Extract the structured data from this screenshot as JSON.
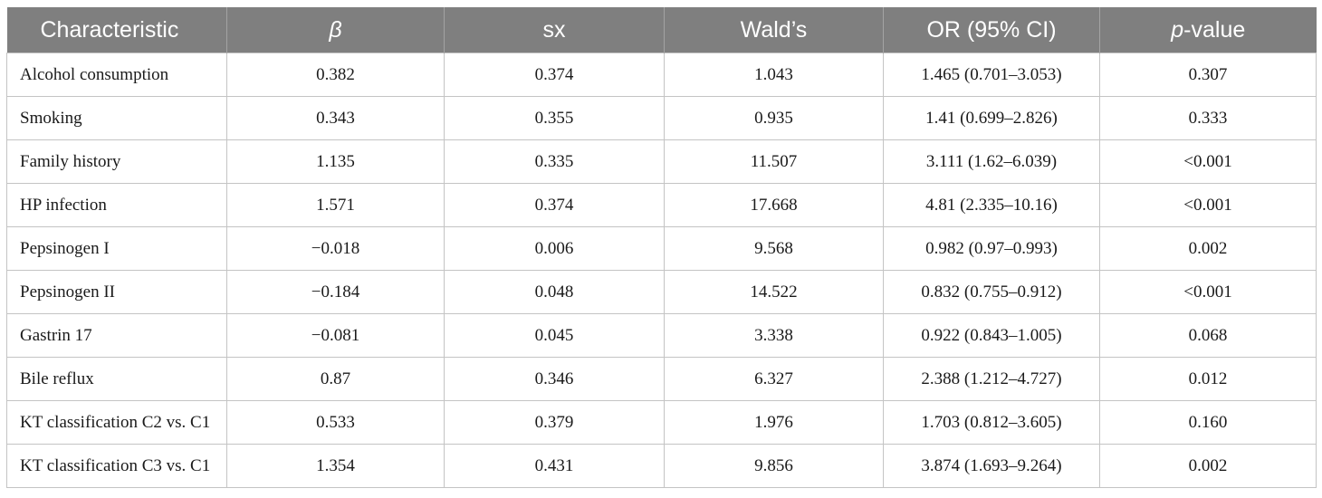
{
  "table": {
    "headers": {
      "characteristic": "Characteristic",
      "beta": "β",
      "sx": "sx",
      "wald": "Wald’s",
      "or_ci": "OR (95% CI)",
      "p_prefix": "p",
      "p_suffix": "-value"
    },
    "rows": [
      {
        "characteristic": "Alcohol consumption",
        "beta": "0.382",
        "sx": "0.374",
        "wald": "1.043",
        "or_ci": "1.465 (0.701–3.053)",
        "p": "0.307"
      },
      {
        "characteristic": "Smoking",
        "beta": "0.343",
        "sx": "0.355",
        "wald": "0.935",
        "or_ci": "1.41 (0.699–2.826)",
        "p": "0.333"
      },
      {
        "characteristic": "Family history",
        "beta": "1.135",
        "sx": "0.335",
        "wald": "11.507",
        "or_ci": "3.111 (1.62–6.039)",
        "p": "<0.001"
      },
      {
        "characteristic": "HP infection",
        "beta": "1.571",
        "sx": "0.374",
        "wald": "17.668",
        "or_ci": "4.81 (2.335–10.16)",
        "p": "<0.001"
      },
      {
        "characteristic": "Pepsinogen I",
        "beta": "−0.018",
        "sx": "0.006",
        "wald": "9.568",
        "or_ci": "0.982 (0.97–0.993)",
        "p": "0.002"
      },
      {
        "characteristic": "Pepsinogen II",
        "beta": "−0.184",
        "sx": "0.048",
        "wald": "14.522",
        "or_ci": "0.832 (0.755–0.912)",
        "p": "<0.001"
      },
      {
        "characteristic": "Gastrin 17",
        "beta": "−0.081",
        "sx": "0.045",
        "wald": "3.338",
        "or_ci": "0.922 (0.843–1.005)",
        "p": "0.068"
      },
      {
        "characteristic": "Bile reflux",
        "beta": "0.87",
        "sx": "0.346",
        "wald": "6.327",
        "or_ci": "2.388 (1.212–4.727)",
        "p": "0.012"
      },
      {
        "characteristic": "KT classification C2 vs. C1",
        "beta": "0.533",
        "sx": "0.379",
        "wald": "1.976",
        "or_ci": "1.703 (0.812–3.605)",
        "p": "0.160"
      },
      {
        "characteristic": "KT classification C3 vs. C1",
        "beta": "1.354",
        "sx": "0.431",
        "wald": "9.856",
        "or_ci": "3.874 (1.693–9.264)",
        "p": "0.002"
      }
    ]
  }
}
